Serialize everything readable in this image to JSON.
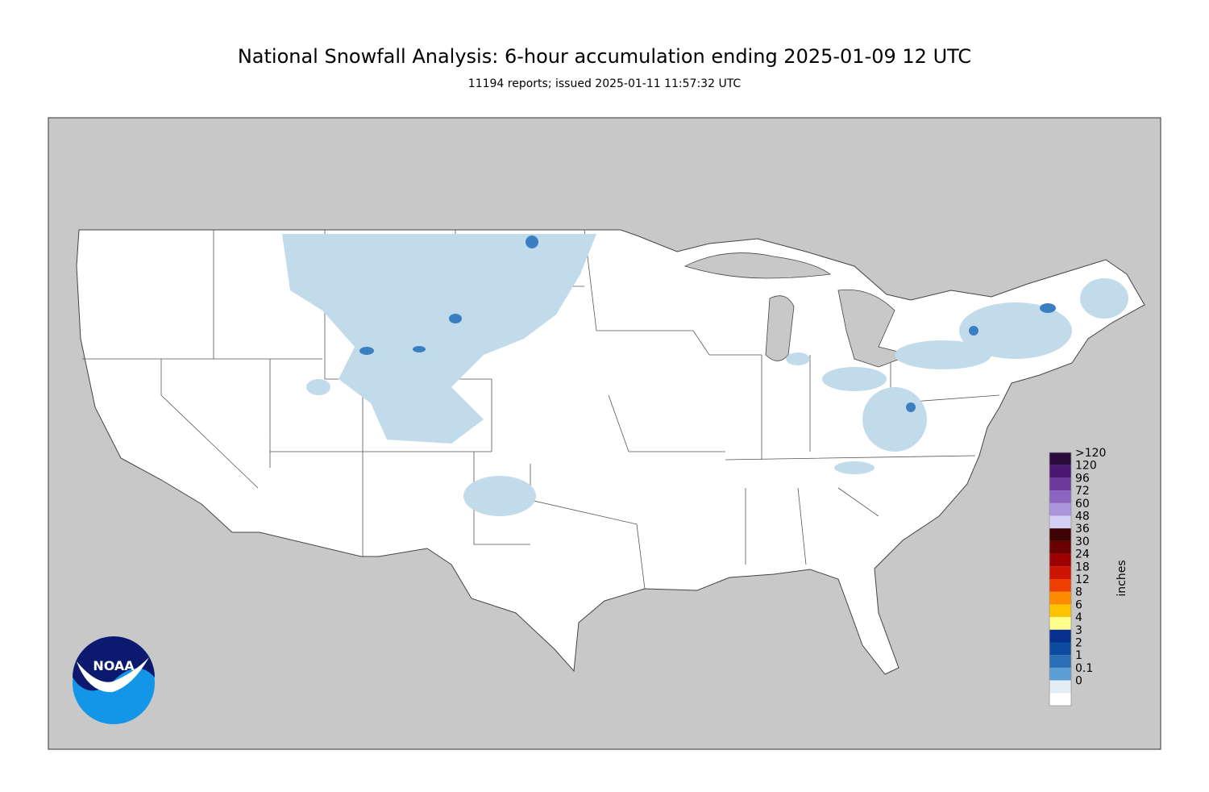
{
  "header": {
    "title": "National Snowfall Analysis: 6-hour accumulation ending 2025-01-09 12 UTC",
    "subtitle": "11194 reports; issued 2025-01-11 11:57:32 UTC"
  },
  "legend": {
    "unit": "inches",
    "items": [
      {
        "label": ">120",
        "color": "#2a0b3d"
      },
      {
        "label": "120",
        "color": "#4a1870"
      },
      {
        "label": "96",
        "color": "#6c3a9a"
      },
      {
        "label": "72",
        "color": "#8e64c2"
      },
      {
        "label": "60",
        "color": "#ab96dc"
      },
      {
        "label": "48",
        "color": "#d4cff5"
      },
      {
        "label": "36",
        "color": "#3d0303"
      },
      {
        "label": "30",
        "color": "#6b0000"
      },
      {
        "label": "24",
        "color": "#9c0000"
      },
      {
        "label": "18",
        "color": "#cc1400"
      },
      {
        "label": "12",
        "color": "#ee3f00"
      },
      {
        "label": "8",
        "color": "#ff8c00"
      },
      {
        "label": "6",
        "color": "#ffc400"
      },
      {
        "label": "4",
        "color": "#ffff8c"
      },
      {
        "label": "3",
        "color": "#08308f"
      },
      {
        "label": "2",
        "color": "#0c4ca0"
      },
      {
        "label": "1",
        "color": "#2a6fb6"
      },
      {
        "label": "0.1",
        "color": "#5b9fd4"
      },
      {
        "label": "0",
        "color": "#b7d5ea"
      }
    ],
    "floor_color": "#e3edf6"
  },
  "logo": {
    "text": "NOAA"
  }
}
